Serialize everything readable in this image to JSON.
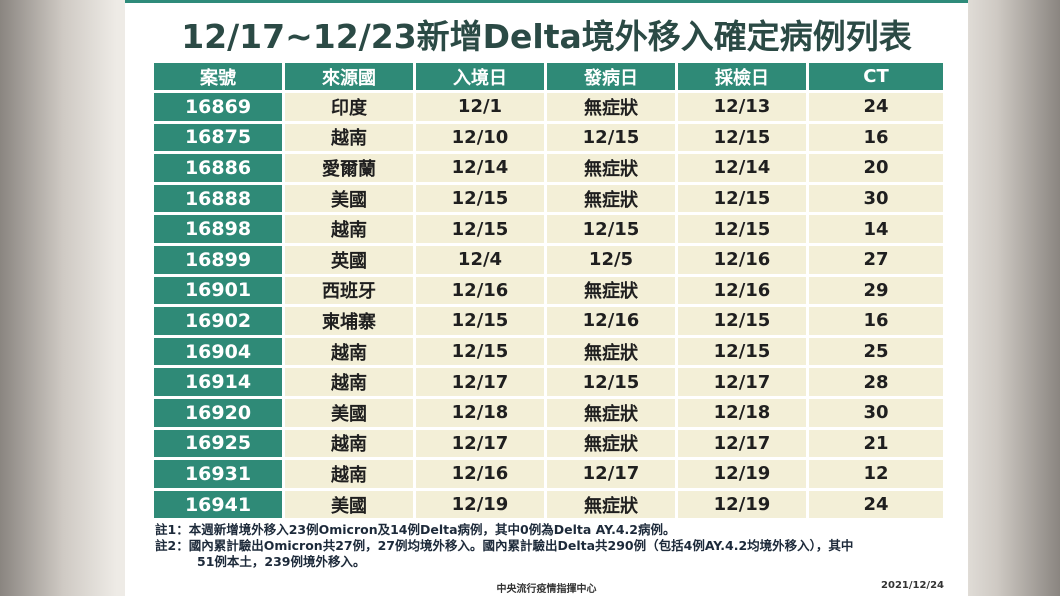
{
  "title": "12/17~12/23新增Delta境外移入確定病例列表",
  "table": {
    "headers": [
      "案號",
      "來源國",
      "入境日",
      "發病日",
      "採檢日",
      "CT"
    ],
    "rows": [
      [
        "16869",
        "印度",
        "12/1",
        "無症狀",
        "12/13",
        "24"
      ],
      [
        "16875",
        "越南",
        "12/10",
        "12/15",
        "12/15",
        "16"
      ],
      [
        "16886",
        "愛爾蘭",
        "12/14",
        "無症狀",
        "12/14",
        "20"
      ],
      [
        "16888",
        "美國",
        "12/15",
        "無症狀",
        "12/15",
        "30"
      ],
      [
        "16898",
        "越南",
        "12/15",
        "12/15",
        "12/15",
        "14"
      ],
      [
        "16899",
        "英國",
        "12/4",
        "12/5",
        "12/16",
        "27"
      ],
      [
        "16901",
        "西班牙",
        "12/16",
        "無症狀",
        "12/16",
        "29"
      ],
      [
        "16902",
        "柬埔寨",
        "12/15",
        "12/16",
        "12/15",
        "16"
      ],
      [
        "16904",
        "越南",
        "12/15",
        "無症狀",
        "12/15",
        "25"
      ],
      [
        "16914",
        "越南",
        "12/17",
        "12/15",
        "12/17",
        "28"
      ],
      [
        "16920",
        "美國",
        "12/18",
        "無症狀",
        "12/18",
        "30"
      ],
      [
        "16925",
        "越南",
        "12/17",
        "無症狀",
        "12/17",
        "21"
      ],
      [
        "16931",
        "越南",
        "12/16",
        "12/17",
        "12/19",
        "12"
      ],
      [
        "16941",
        "美國",
        "12/19",
        "無症狀",
        "12/19",
        "24"
      ]
    ]
  },
  "notes": {
    "note1": "註1：本週新增境外移入23例Omicron及14例Delta病例，其中0例為Delta AY.4.2病例。",
    "note2_line1": "註2：國內累計驗出Omicron共27例，27例均境外移入。國內累計驗出Delta共290例（包括4例AY.4.2均境外移入），其中",
    "note2_line2": "51例本土，239例境外移入。"
  },
  "footer": {
    "org": "中央流行疫情指揮中心",
    "date": "2021/12/24"
  },
  "colors": {
    "header_bg": "#2f8a77",
    "cell_bg": "#f3efd7",
    "title": "#2b4a45"
  }
}
